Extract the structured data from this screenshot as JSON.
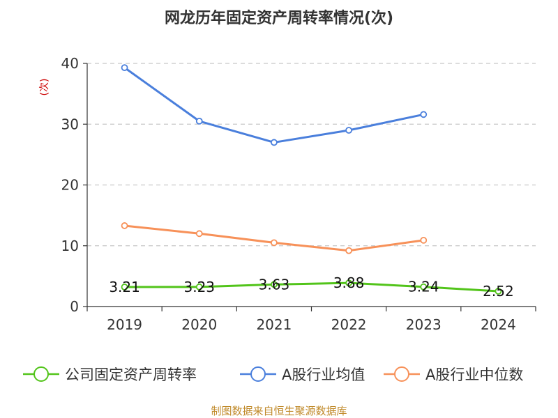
{
  "chart_data": {
    "type": "line",
    "title": "网龙历年固定资产周转率情况(次)",
    "ylabel": "(次)",
    "xlabel": "",
    "categories": [
      "2019",
      "2020",
      "2021",
      "2022",
      "2023",
      "2024"
    ],
    "ylim": [
      0,
      40
    ],
    "yticks": [
      0,
      10,
      20,
      30,
      40
    ],
    "grid": true,
    "legend_position": "bottom",
    "series": [
      {
        "name": "公司固定资产周转率",
        "color": "#52c41a",
        "values": [
          3.21,
          3.23,
          3.63,
          3.88,
          3.24,
          2.52
        ],
        "labels": [
          "3.21",
          "3.23",
          "3.63",
          "3.88",
          "3.24",
          "2.52"
        ]
      },
      {
        "name": "A股行业均值",
        "color": "#4a7fdc",
        "values": [
          39.3,
          30.5,
          27.0,
          29.0,
          31.6,
          null
        ]
      },
      {
        "name": "A股行业中位数",
        "color": "#f79159",
        "values": [
          13.3,
          12.0,
          10.5,
          9.2,
          10.9,
          null
        ]
      }
    ]
  },
  "source": "制图数据来自恒生聚源数据库"
}
